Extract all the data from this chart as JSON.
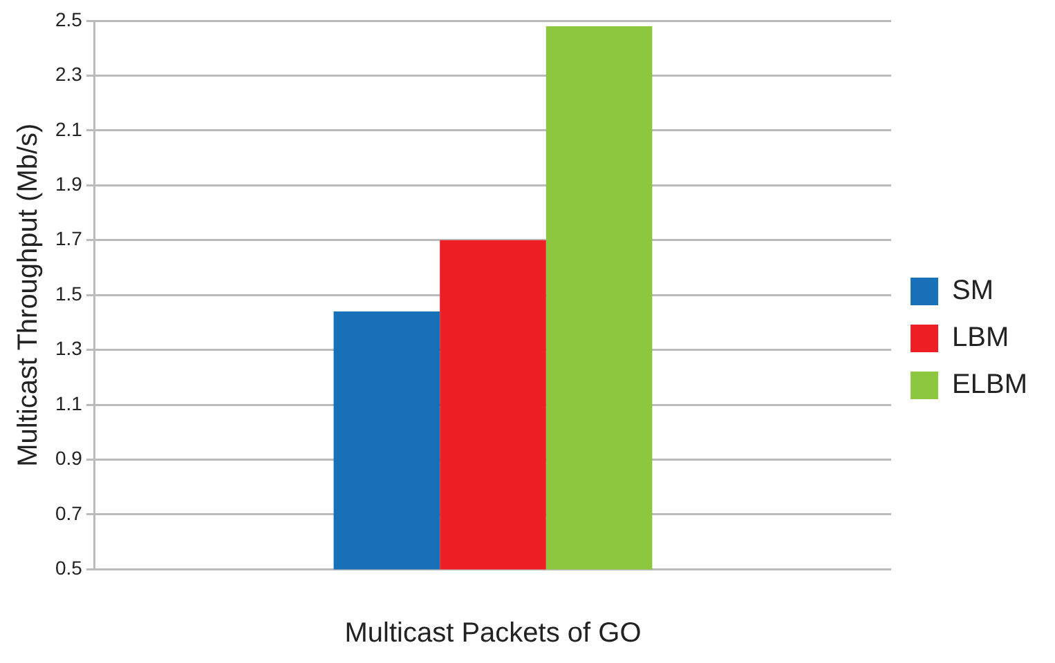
{
  "chart_data": {
    "type": "bar",
    "xlabel": "Multicast Packets of GO",
    "ylabel": "Multicast Throughput (Mb/s)",
    "categories": [
      null
    ],
    "series": [
      {
        "name": "SM",
        "color": "#1770b8",
        "values": [
          1.44
        ]
      },
      {
        "name": "LBM",
        "color": "#ed1f24",
        "values": [
          1.7
        ]
      },
      {
        "name": "ELBM",
        "color": "#8dc63f",
        "values": [
          2.48
        ]
      }
    ],
    "ylim": [
      0.5,
      2.5
    ],
    "yticks": [
      0.5,
      0.7,
      0.9,
      1.1,
      1.3,
      1.5,
      1.7,
      1.9,
      2.1,
      2.3,
      2.5
    ],
    "grid": "y",
    "legend": "right"
  }
}
